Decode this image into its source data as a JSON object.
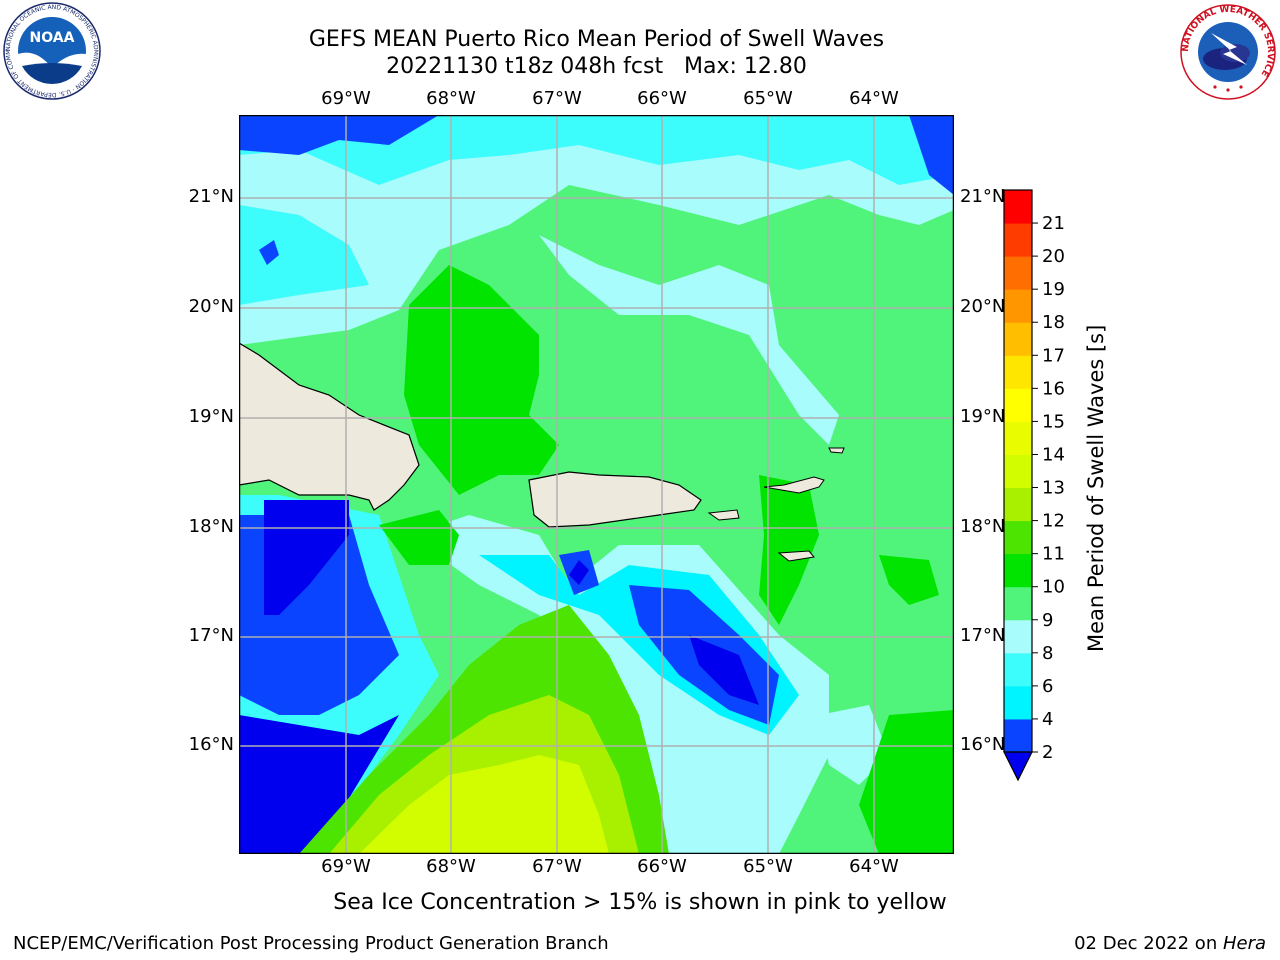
{
  "header": {
    "title_line1": "GEFS MEAN Puerto Rico Mean Period of Swell Waves",
    "title_line2": "20221130 t18z 048h fcst   Max: 12.80"
  },
  "logos": {
    "left": {
      "name": "noaa-logo",
      "text": "NOAA",
      "ring_text": "NATIONAL OCEANIC AND ATMOSPHERIC ADMINISTRATION · U.S. DEPARTMENT OF COMMERCE"
    },
    "right": {
      "name": "nws-logo",
      "ring_text": "NATIONAL WEATHER SERVICE"
    }
  },
  "map": {
    "lon_ticks": [
      "69°W",
      "68°W",
      "67°W",
      "66°W",
      "65°W",
      "64°W"
    ],
    "lat_ticks": [
      "21°N",
      "20°N",
      "19°N",
      "18°N",
      "17°N",
      "16°N"
    ],
    "land_color": "#ede9dc",
    "gridline_color": "#b0b0b0"
  },
  "colorbar": {
    "label": "Mean Period of Swell Waves [s]",
    "levels": [
      "2",
      "4",
      "6",
      "8",
      "9",
      "10",
      "11",
      "12",
      "13",
      "14",
      "15",
      "16",
      "17",
      "18",
      "19",
      "20",
      "21"
    ],
    "colors": [
      "#0a44ff",
      "#00f4ff",
      "#3cfcfc",
      "#a8fcfc",
      "#50f47a",
      "#00e400",
      "#4ce400",
      "#a8f000",
      "#d2fc00",
      "#eafc00",
      "#ffff00",
      "#ffe600",
      "#ffbe00",
      "#ff9600",
      "#ff6e00",
      "#ff3c00",
      "#ff0000"
    ],
    "under_color": "#0000ee"
  },
  "caption": "Sea Ice Concentration > 15% is shown in pink to yellow",
  "footer": {
    "left": "NCEP/EMC/Verification Post Processing Product Generation Branch",
    "right_date": "02 Dec 2022 on ",
    "right_host": "Hera"
  }
}
